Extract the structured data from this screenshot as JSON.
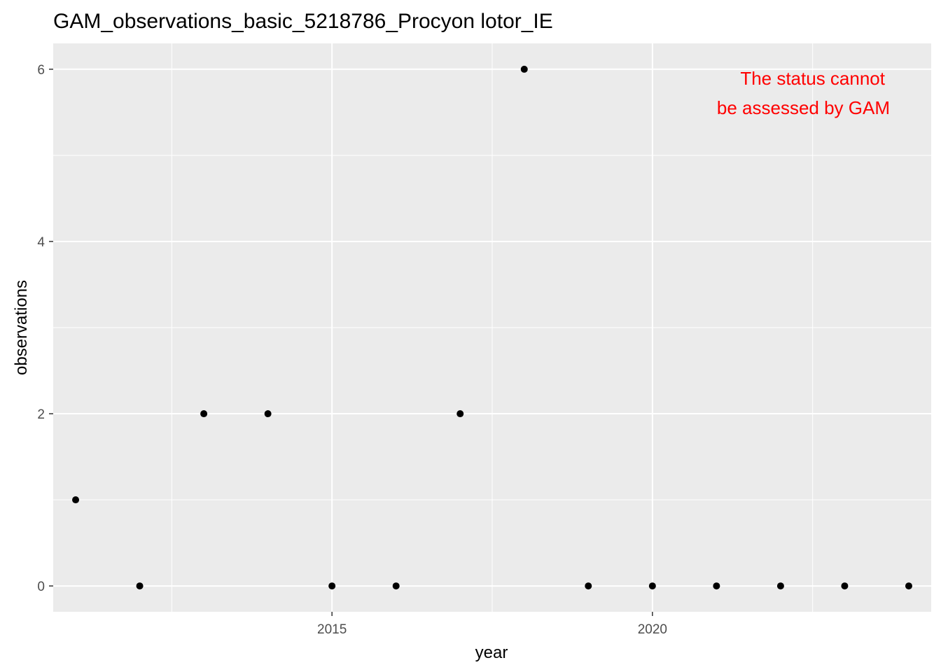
{
  "chart_data": {
    "type": "scatter",
    "title": "GAM_observations_basic_5218786_Procyon lotor_IE",
    "xlabel": "year",
    "ylabel": "observations",
    "x": [
      2011,
      2012,
      2013,
      2014,
      2015,
      2016,
      2017,
      2018,
      2019,
      2020,
      2021,
      2022,
      2023,
      2024
    ],
    "y": [
      1,
      0,
      2,
      2,
      0,
      0,
      2,
      6,
      0,
      0,
      0,
      0,
      0,
      0
    ],
    "xlim": [
      2010.65,
      2024.35
    ],
    "ylim": [
      -0.3,
      6.3
    ],
    "x_ticks": [
      2015,
      2020
    ],
    "x_tick_labels": [
      "2015",
      "2020"
    ],
    "y_ticks": [
      0,
      2,
      4,
      6
    ],
    "y_tick_labels": [
      "0",
      "2",
      "4",
      "6"
    ],
    "grid": true,
    "panel_color": "#ebebeb",
    "point_color": "#000000",
    "annotation": {
      "lines": [
        "The status cannot",
        "be assessed by GAM"
      ],
      "color": "#ff0000",
      "position": "top-right"
    }
  }
}
